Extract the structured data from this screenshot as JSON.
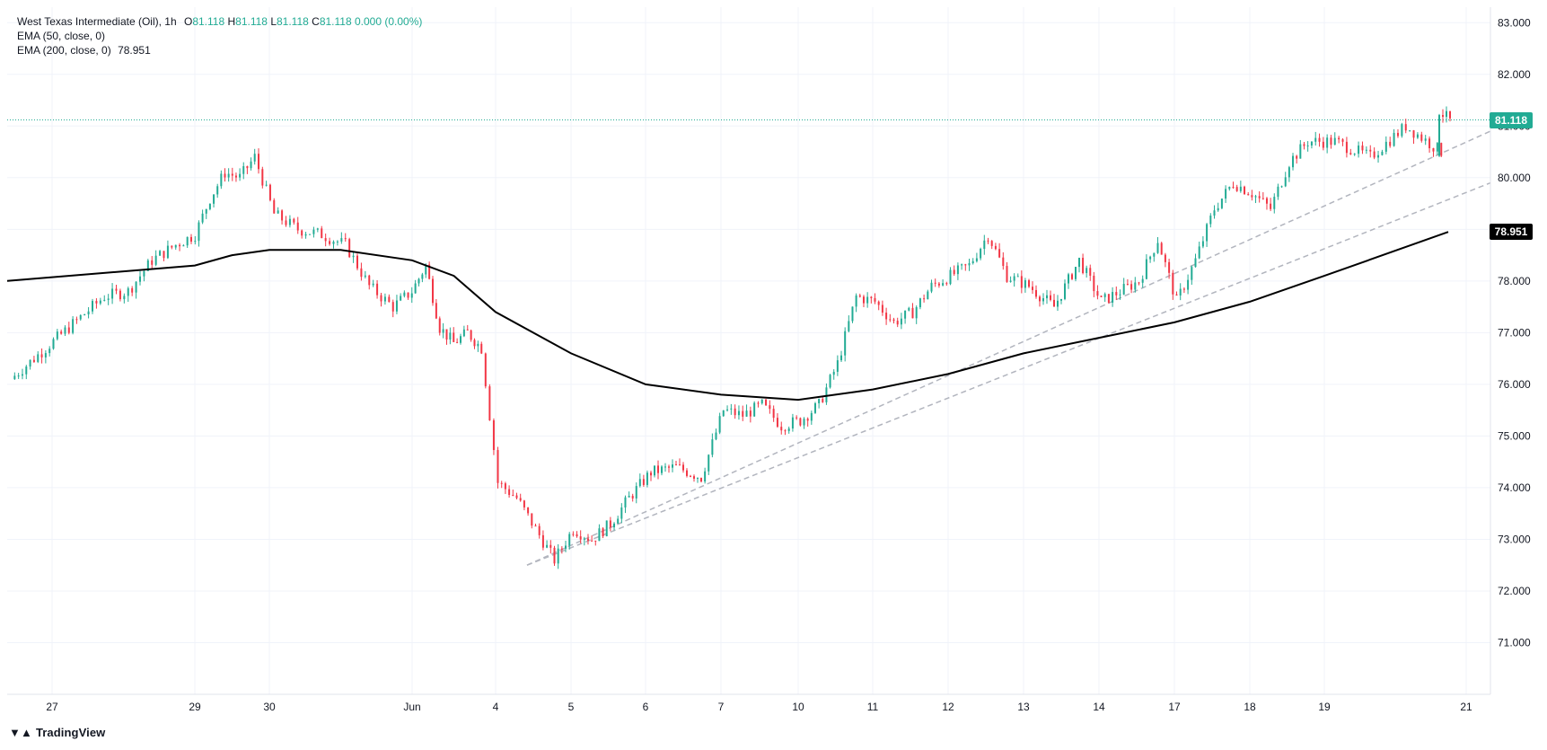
{
  "header": {
    "symbol": "West Texas Intermediate (Oil), 1h",
    "o_label": "O",
    "o_value": "81.118",
    "h_label": "H",
    "h_value": "81.118",
    "l_label": "L",
    "l_value": "81.118",
    "c_label": "C",
    "c_value": "81.118",
    "change": "0.000 (0.00%)",
    "ema50_label": "EMA (50, close, 0)",
    "ema200_label": "EMA (200, close, 0)",
    "ema200_value": "78.951"
  },
  "brand": {
    "name": "TradingView"
  },
  "colors": {
    "up": "#22ab94",
    "down": "#f23645",
    "ema": "#000000",
    "trend": "#b2b5be",
    "grid": "#f0f3fa"
  },
  "chart_data": {
    "type": "candlestick",
    "title": "West Texas Intermediate (Oil), 1h",
    "ylim": [
      70,
      83.3
    ],
    "y_ticks": [
      "71.000",
      "72.000",
      "73.000",
      "74.000",
      "75.000",
      "76.000",
      "77.000",
      "78.000",
      "79.000",
      "80.000",
      "81.000",
      "82.000",
      "83.000"
    ],
    "x_ticks": [
      "27",
      "29",
      "30",
      "Jun",
      "4",
      "5",
      "6",
      "7",
      "10",
      "11",
      "12",
      "13",
      "14",
      "17",
      "18",
      "19",
      "21"
    ],
    "last_price": "81.118",
    "ema200_last": "78.951",
    "grid": true,
    "price_path": [
      [
        "27",
        76.1
      ],
      [
        "27",
        77.3
      ],
      [
        "27",
        77.7
      ],
      [
        "27",
        77.8
      ],
      [
        "27",
        78.4
      ],
      [
        "27",
        78.7
      ],
      [
        "29",
        78.9
      ],
      [
        "29",
        79.6
      ],
      [
        "29",
        80.1
      ],
      [
        "29",
        80.0
      ],
      [
        "29",
        80.4
      ],
      [
        "30",
        79.3
      ],
      [
        "30",
        79.0
      ],
      [
        "30",
        78.9
      ],
      [
        "30",
        78.7
      ],
      [
        "30",
        77.9
      ],
      [
        "30",
        77.5
      ],
      [
        "Jun",
        77.8
      ],
      [
        "Jun",
        78.3
      ],
      [
        "Jun",
        77.1
      ],
      [
        "Jun",
        76.8
      ],
      [
        "Jun",
        77.0
      ],
      [
        "Jun",
        76.7
      ],
      [
        "4",
        74.1
      ],
      [
        "4",
        73.8
      ],
      [
        "4",
        73.2
      ],
      [
        "4",
        72.6
      ],
      [
        "5",
        73.2
      ],
      [
        "5",
        73.0
      ],
      [
        "5",
        73.3
      ],
      [
        "5",
        73.8
      ],
      [
        "6",
        74.3
      ],
      [
        "6",
        74.4
      ],
      [
        "6",
        74.2
      ],
      [
        "7",
        75.5
      ],
      [
        "7",
        75.4
      ],
      [
        "7",
        75.6
      ],
      [
        "7",
        75.2
      ],
      [
        "10",
        75.3
      ],
      [
        "10",
        75.6
      ],
      [
        "10",
        76.4
      ],
      [
        "10",
        77.7
      ],
      [
        "11",
        77.6
      ],
      [
        "11",
        77.2
      ],
      [
        "11",
        77.4
      ],
      [
        "11",
        77.9
      ],
      [
        "12",
        78.1
      ],
      [
        "12",
        78.3
      ],
      [
        "12",
        78.9
      ],
      [
        "12",
        78.1
      ],
      [
        "13",
        77.9
      ],
      [
        "13",
        77.5
      ],
      [
        "13",
        78.4
      ],
      [
        "14",
        77.6
      ],
      [
        "14",
        77.8
      ],
      [
        "14",
        78.0
      ],
      [
        "14",
        78.8
      ],
      [
        "17",
        77.6
      ],
      [
        "17",
        78.4
      ],
      [
        "17",
        79.4
      ],
      [
        "17",
        79.9
      ],
      [
        "18",
        79.7
      ],
      [
        "18",
        79.4
      ],
      [
        "18",
        80.3
      ],
      [
        "18",
        80.7
      ],
      [
        "19",
        80.7
      ],
      [
        "19",
        80.4
      ],
      [
        "19",
        81.0
      ],
      [
        "19",
        80.5
      ],
      [
        "21",
        81.3
      ],
      [
        "21",
        81.1
      ]
    ],
    "series": [
      {
        "name": "EMA (200, close, 0)",
        "type": "line",
        "points": [
          [
            "27",
            78.0
          ],
          [
            "29",
            78.3
          ],
          [
            "29",
            78.5
          ],
          [
            "30",
            78.6
          ],
          [
            "30",
            78.6
          ],
          [
            "Jun",
            78.4
          ],
          [
            "Jun",
            78.1
          ],
          [
            "4",
            77.4
          ],
          [
            "5",
            76.6
          ],
          [
            "6",
            76.0
          ],
          [
            "7",
            75.8
          ],
          [
            "10",
            75.7
          ],
          [
            "11",
            75.9
          ],
          [
            "12",
            76.2
          ],
          [
            "13",
            76.6
          ],
          [
            "14",
            76.9
          ],
          [
            "17",
            77.2
          ],
          [
            "18",
            77.6
          ],
          [
            "19",
            78.1
          ],
          [
            "21",
            78.95
          ]
        ]
      }
    ]
  }
}
